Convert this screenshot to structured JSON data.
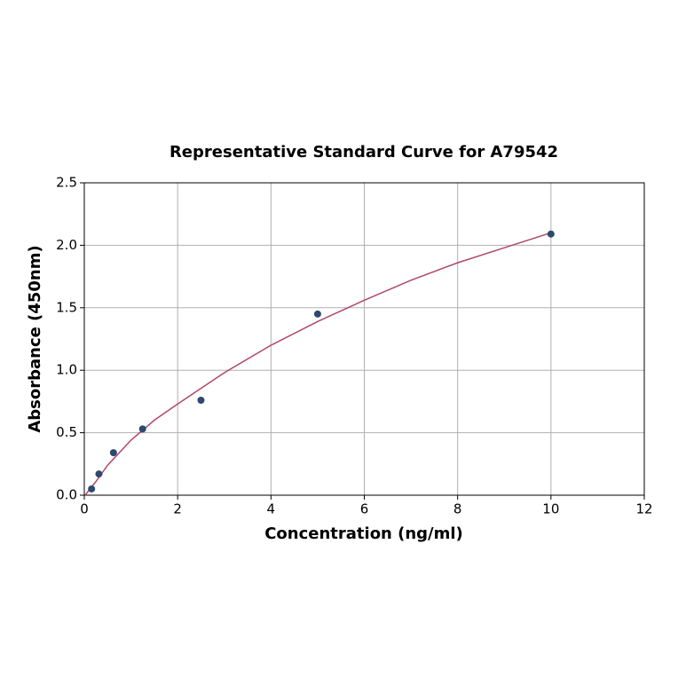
{
  "chart_data": {
    "type": "scatter",
    "title": "Representative Standard Curve for A79542",
    "x_label": "Concentration (ng/ml)",
    "y_label": "Absorbance (450nm)",
    "xlim": [
      0,
      12
    ],
    "ylim": [
      0,
      2.5
    ],
    "xticks": [
      0,
      2,
      4,
      6,
      8,
      10,
      12
    ],
    "yticks": [
      {
        "value": 0,
        "label": "0.0"
      },
      {
        "value": 0.5,
        "label": "0.5"
      },
      {
        "value": 1,
        "label": "1.0"
      },
      {
        "value": 1.5,
        "label": "1.5"
      },
      {
        "value": 2,
        "label": "2.0"
      },
      {
        "value": 2.5,
        "label": "2.5"
      }
    ],
    "grid": true,
    "series": [
      {
        "kind": "points",
        "color": "#2d4a6e",
        "x": [
          0.156,
          0.313,
          0.625,
          1.25,
          2.5,
          5,
          10
        ],
        "values": [
          0.05,
          0.17,
          0.34,
          0.53,
          0.76,
          1.45,
          2.09
        ]
      },
      {
        "kind": "line",
        "color": "#b0476a",
        "x": [
          0.02,
          0.1,
          0.25,
          0.5,
          1,
          1.5,
          2,
          3,
          4,
          5,
          6,
          7,
          8,
          9,
          10
        ],
        "values": [
          0.0,
          0.04,
          0.11,
          0.24,
          0.44,
          0.6,
          0.73,
          0.98,
          1.2,
          1.39,
          1.56,
          1.72,
          1.86,
          1.98,
          2.1
        ]
      }
    ]
  }
}
